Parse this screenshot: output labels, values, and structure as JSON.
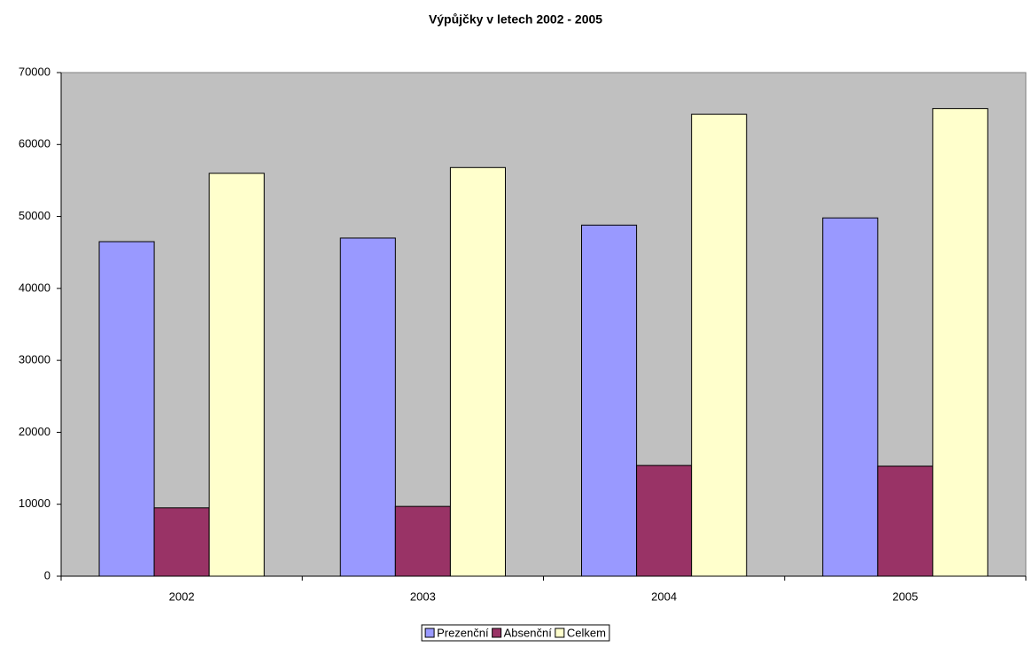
{
  "chart_data": {
    "type": "bar",
    "title": "Výpůjčky v letech 2002 - 2005",
    "categories": [
      "2002",
      "2003",
      "2004",
      "2005"
    ],
    "series": [
      {
        "name": "Prezenční",
        "color": "#9999ff",
        "values": [
          46500,
          47000,
          48800,
          49800
        ]
      },
      {
        "name": "Absenční",
        "color": "#993366",
        "values": [
          9500,
          9700,
          15400,
          15300
        ]
      },
      {
        "name": "Celkem",
        "color": "#ffffcc",
        "values": [
          56000,
          56800,
          64200,
          65000
        ]
      }
    ],
    "ylim": [
      0,
      70000
    ],
    "yticks": [
      0,
      10000,
      20000,
      30000,
      40000,
      50000,
      60000,
      70000
    ],
    "grid": false,
    "legend": "bottom",
    "plot_background": "#c0c0c0"
  }
}
